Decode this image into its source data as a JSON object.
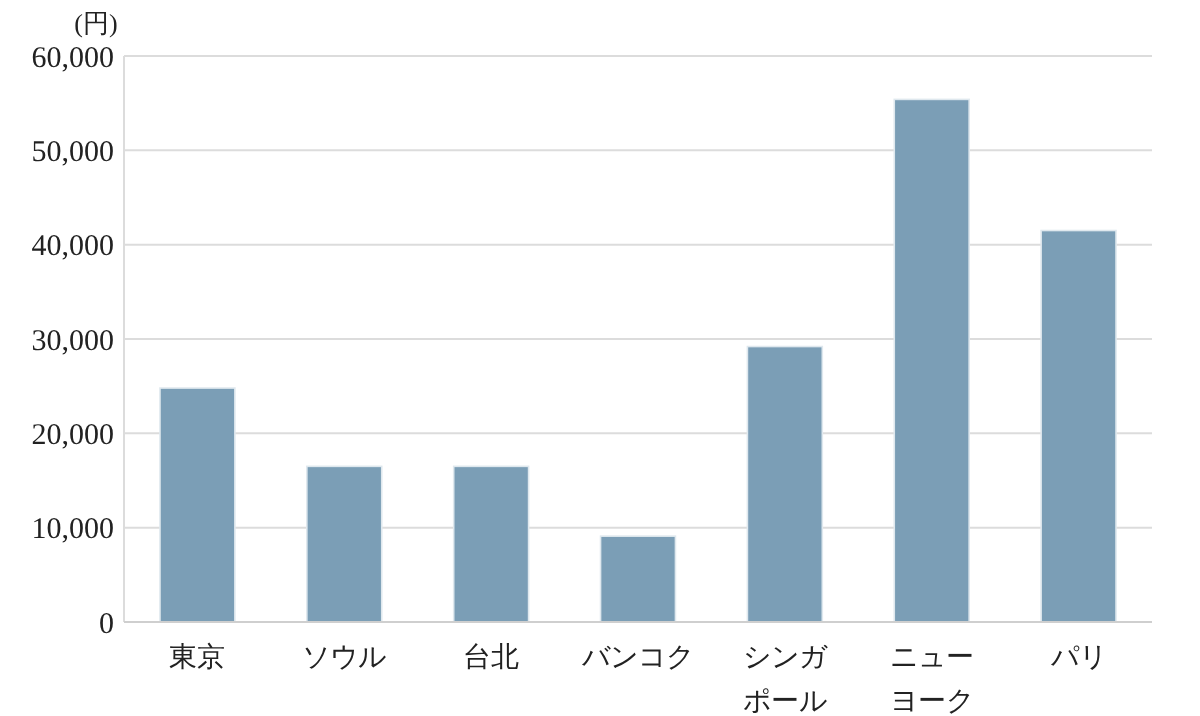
{
  "chart_data": {
    "type": "bar",
    "ylabel": "(円)",
    "categories": [
      "東京",
      "ソウル",
      "台北",
      "バンコク",
      "シンガポール",
      "ニューヨーク",
      "パリ"
    ],
    "values": [
      24800,
      16500,
      16500,
      9100,
      29200,
      55400,
      41500
    ],
    "color": "#7b9eb6",
    "ylim": [
      0,
      60000
    ],
    "yticks": [
      {
        "value": 0,
        "label": "0"
      },
      {
        "value": 10000,
        "label": "10,000"
      },
      {
        "value": 20000,
        "label": "20,000"
      },
      {
        "value": 30000,
        "label": "30,000"
      },
      {
        "value": 40000,
        "label": "40,000"
      },
      {
        "value": 50000,
        "label": "50,000"
      },
      {
        "value": 60000,
        "label": "60,000"
      }
    ],
    "grid": "y"
  }
}
